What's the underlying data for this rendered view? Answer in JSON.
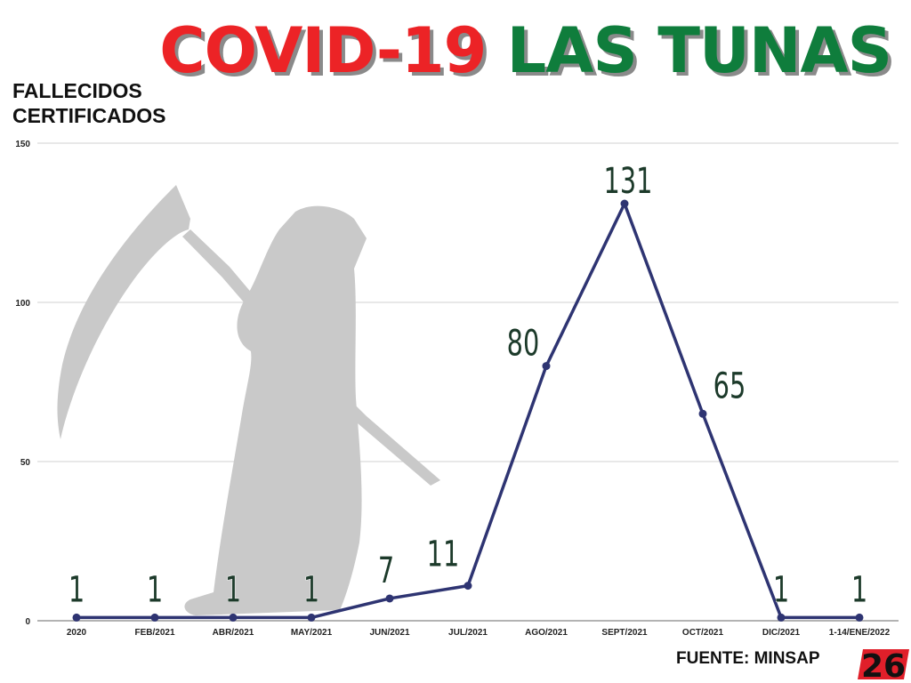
{
  "title": {
    "part1": "COVID-19",
    "part2": "LAS TUNAS"
  },
  "y_axis_title": "FALLECIDOS\nCERTIFICADOS",
  "source": "FUENTE: MINSAP",
  "logo_text": "26",
  "icons": [
    "grim-reaper-silhouette-icon",
    "logo-26-icon"
  ],
  "colors": {
    "title_red": "#ec2326",
    "title_green": "#0f7d3c",
    "line": "#2e3472",
    "value_label": "#1c3a2a",
    "silhouette": "#c9c9c9"
  },
  "chart_data": {
    "type": "line",
    "categories": [
      "2020",
      "FEB/2021",
      "ABR/2021",
      "MAY/2021",
      "JUN/2021",
      "JUL/2021",
      "AGO/2021",
      "SEPT/2021",
      "OCT/2021",
      "DIC/2021",
      "1-14/ENE/2022"
    ],
    "series": [
      {
        "values": [
          1,
          1,
          1,
          1,
          7,
          11,
          80,
          131,
          65,
          1,
          1
        ]
      }
    ],
    "data_labels": [
      "1",
      "1",
      "1",
      "1",
      "7",
      "11",
      "80",
      "131",
      "65",
      "1",
      "1"
    ],
    "y_ticks": [
      "0",
      "50",
      "100",
      "150"
    ],
    "ylim": [
      0,
      150
    ],
    "xlabel": "",
    "ylabel": "FALLECIDOS CERTIFICADOS",
    "grid": true,
    "legend": "none"
  }
}
